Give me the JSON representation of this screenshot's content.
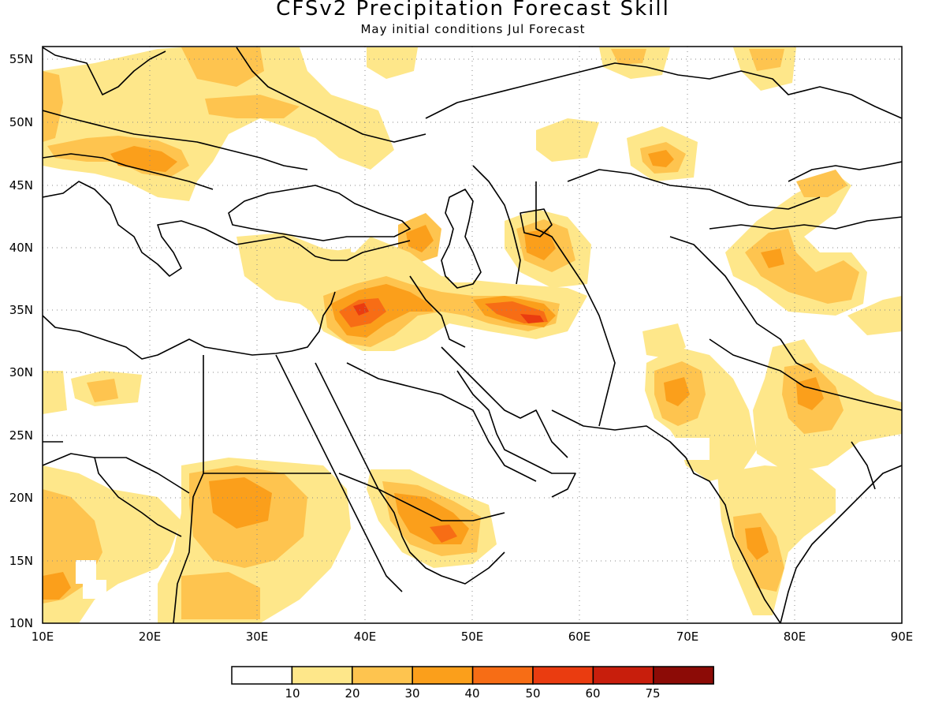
{
  "title": "CFSv2 Precipitation Forecast Skill",
  "subtitle": "May initial conditions   Jul Forecast",
  "map": {
    "projection": "equirectangular",
    "lon_range": [
      10,
      90
    ],
    "lat_range": [
      10,
      56
    ],
    "grid": "dotted",
    "lon_ticks": [
      "10E",
      "20E",
      "30E",
      "40E",
      "50E",
      "60E",
      "70E",
      "80E",
      "90E"
    ],
    "lat_ticks": [
      "10N",
      "15N",
      "20N",
      "25N",
      "30N",
      "35N",
      "40N",
      "45N",
      "50N",
      "55N"
    ],
    "fill_colors": {
      "10-20": "#fee78a",
      "20-30": "#fec44f",
      "30-40": "#fb9f1b",
      "40-50": "#f76d15",
      "50-60": "#ea3c10",
      "60-75": "#c81e0c",
      "75+": "#8c0b06"
    },
    "coastline_color": "#000000"
  },
  "colorbar": {
    "labels": [
      "10",
      "20",
      "30",
      "40",
      "50",
      "60",
      "75"
    ],
    "colors": [
      "#ffffff",
      "#fee78a",
      "#fec44f",
      "#fb9f1b",
      "#f76d15",
      "#ea3c10",
      "#c81e0c",
      "#8c0b06"
    ]
  }
}
